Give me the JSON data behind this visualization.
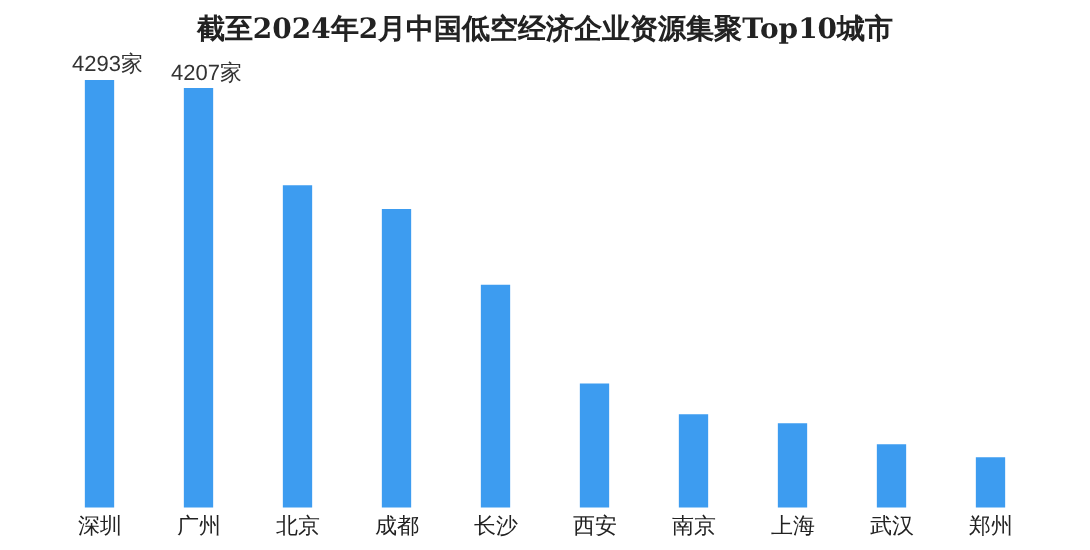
{
  "chart_data": {
    "type": "bar",
    "title": "截至2024年2月中国低空经济企业资源集聚Top10城市",
    "categories": [
      "深圳",
      "广州",
      "北京",
      "成都",
      "长沙",
      "西安",
      "南京",
      "上海",
      "武汉",
      "郑州"
    ],
    "values": [
      4293,
      4207,
      3230,
      2990,
      2230,
      1240,
      930,
      840,
      630,
      500
    ],
    "value_labels": [
      "4293家",
      "4207家",
      null,
      null,
      null,
      null,
      null,
      null,
      null,
      null
    ],
    "color": "#3d9cf0",
    "grid": false
  }
}
